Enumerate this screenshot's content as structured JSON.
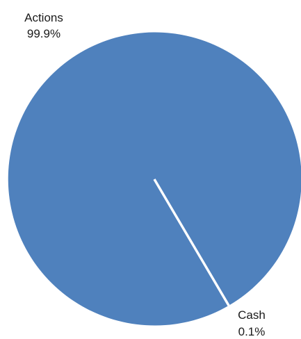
{
  "chart_data": {
    "type": "pie",
    "slices": [
      {
        "label": "Actions",
        "value": 99.9,
        "value_label": "99.9%",
        "color": "#4f81bd"
      },
      {
        "label": "Cash",
        "value": 0.1,
        "value_label": "0.1%",
        "color": "#4f81bd"
      }
    ],
    "legend": "none",
    "separator_color": "#ffffff"
  }
}
